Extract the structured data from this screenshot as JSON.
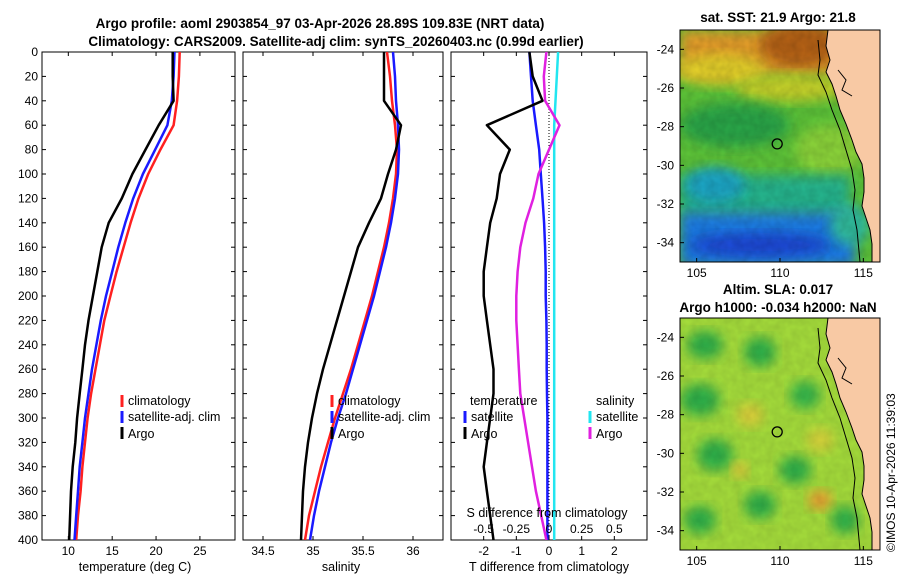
{
  "header": {
    "line1": "Argo profile: aoml 2903854_97 03-Apr-2026 28.89S 109.83E (NRT data)",
    "line2": "Climatology: CARS2009. Satellite-adj clim: synTS_20260403.nc (0.99d earlier)"
  },
  "credit": "©IMOS 10-Apr-2026 11:39:03",
  "colors": {
    "climatology": "#ff2020",
    "satellite": "#1a1aff",
    "argo": "#000000",
    "temp_diff": "#1a1aff",
    "sal_diff": "#22e6f0",
    "argo_sal_diff": "#e020e0",
    "land": "#f8c9a4"
  },
  "chart_data": [
    {
      "type": "line",
      "name": "temperature-profile",
      "xlabel": "temperature (deg C)",
      "ylabel": "",
      "xlim": [
        7,
        29
      ],
      "ylim": [
        400,
        0
      ],
      "xticks": [
        10,
        15,
        20,
        25
      ],
      "yticks": [
        0,
        20,
        40,
        60,
        80,
        100,
        120,
        140,
        160,
        180,
        200,
        220,
        240,
        260,
        280,
        300,
        320,
        340,
        360,
        380,
        400
      ],
      "legend": [
        "climatology",
        "satellite-adj. clim",
        "Argo"
      ],
      "series": [
        {
          "name": "climatology",
          "x": [
            22.7,
            22.6,
            22.4,
            22.0,
            20.5,
            19.1,
            18.0,
            17.1,
            16.3,
            15.5,
            14.8,
            14.1,
            13.6,
            13.1,
            12.6,
            12.2,
            11.9,
            11.6,
            11.4,
            11.1,
            10.9
          ],
          "y": [
            0,
            20,
            40,
            60,
            80,
            100,
            120,
            140,
            160,
            180,
            200,
            220,
            240,
            260,
            280,
            300,
            320,
            340,
            360,
            380,
            400
          ]
        },
        {
          "name": "satellite-adj. clim",
          "x": [
            22.1,
            22.0,
            21.8,
            21.3,
            19.9,
            18.5,
            17.4,
            16.5,
            15.7,
            15.0,
            14.3,
            13.7,
            13.2,
            12.7,
            12.3,
            11.9,
            11.6,
            11.3,
            11.1,
            10.9,
            10.7
          ],
          "y": [
            0,
            20,
            40,
            60,
            80,
            100,
            120,
            140,
            160,
            180,
            200,
            220,
            240,
            260,
            280,
            300,
            320,
            340,
            360,
            380,
            400
          ]
        },
        {
          "name": "Argo",
          "x": [
            21.9,
            21.9,
            22.0,
            20.3,
            18.8,
            17.3,
            16.1,
            14.6,
            13.8,
            13.3,
            12.8,
            12.3,
            11.9,
            11.6,
            11.3,
            11.0,
            10.8,
            10.5,
            10.3,
            10.2,
            10.1
          ],
          "y": [
            0,
            20,
            40,
            60,
            80,
            100,
            120,
            140,
            160,
            180,
            200,
            220,
            240,
            260,
            280,
            300,
            320,
            340,
            360,
            380,
            400
          ]
        }
      ]
    },
    {
      "type": "line",
      "name": "salinity-profile",
      "xlabel": "salinity",
      "ylabel": "",
      "xlim": [
        34.3,
        36.3
      ],
      "ylim": [
        400,
        0
      ],
      "xticks": [
        34.5,
        35,
        35.5,
        36
      ],
      "xticklabels": [
        "34.5",
        "35",
        "35.5",
        "36"
      ],
      "legend": [
        "climatology",
        "satellite-adj. clim",
        "Argo"
      ],
      "series": [
        {
          "name": "climatology",
          "x": [
            35.74,
            35.77,
            35.79,
            35.82,
            35.84,
            35.83,
            35.8,
            35.76,
            35.71,
            35.65,
            35.59,
            35.52,
            35.45,
            35.38,
            35.3,
            35.22,
            35.15,
            35.08,
            35.02,
            34.96,
            34.92
          ],
          "y": [
            0,
            20,
            40,
            60,
            80,
            100,
            120,
            140,
            160,
            180,
            200,
            220,
            240,
            260,
            280,
            300,
            320,
            340,
            360,
            380,
            400
          ]
        },
        {
          "name": "satellite-adj. clim",
          "x": [
            35.8,
            35.82,
            35.83,
            35.85,
            35.86,
            35.85,
            35.82,
            35.78,
            35.73,
            35.67,
            35.61,
            35.54,
            35.47,
            35.4,
            35.33,
            35.25,
            35.18,
            35.12,
            35.06,
            35.01,
            34.97
          ],
          "y": [
            0,
            20,
            40,
            60,
            80,
            100,
            120,
            140,
            160,
            180,
            200,
            220,
            240,
            260,
            280,
            300,
            320,
            340,
            360,
            380,
            400
          ]
        },
        {
          "name": "Argo",
          "x": [
            35.71,
            35.71,
            35.71,
            35.88,
            35.83,
            35.75,
            35.68,
            35.56,
            35.45,
            35.38,
            35.31,
            35.24,
            35.17,
            35.1,
            35.04,
            34.99,
            34.95,
            34.92,
            34.9,
            34.89,
            34.88
          ],
          "y": [
            0,
            20,
            40,
            60,
            80,
            100,
            120,
            140,
            160,
            180,
            200,
            220,
            240,
            260,
            280,
            300,
            320,
            340,
            360,
            380,
            400
          ]
        }
      ]
    },
    {
      "type": "line",
      "name": "difference-profile",
      "xlabel": "T difference from climatology",
      "top_xlabel": "S difference from climatology",
      "xlim": [
        -3,
        3
      ],
      "ylim": [
        400,
        0
      ],
      "xticks": [
        -2,
        -1,
        0,
        1,
        2
      ],
      "top_xticks": [
        "-0.5",
        "-0.25",
        "0",
        "0.25",
        "0.5"
      ],
      "legend_groups": [
        {
          "title": "temperature",
          "items": [
            "satellite",
            "Argo"
          ]
        },
        {
          "title": "salinity",
          "items": [
            "satellite",
            "Argo"
          ]
        }
      ],
      "series": [
        {
          "name": "temperature satellite",
          "x": [
            -0.6,
            -0.55,
            -0.5,
            -0.4,
            -0.3,
            -0.25,
            -0.2,
            -0.15,
            -0.12,
            -0.1,
            -0.1,
            -0.08,
            -0.07,
            -0.07,
            -0.06,
            -0.05,
            -0.05,
            -0.05,
            -0.05,
            -0.05,
            -0.05
          ],
          "y": [
            0,
            20,
            40,
            60,
            80,
            100,
            120,
            140,
            160,
            180,
            200,
            220,
            240,
            260,
            280,
            300,
            320,
            340,
            360,
            380,
            400
          ]
        },
        {
          "name": "temperature Argo",
          "x": [
            -0.6,
            -0.5,
            -0.2,
            -1.9,
            -1.2,
            -1.5,
            -1.6,
            -1.8,
            -1.9,
            -2.0,
            -2.0,
            -1.9,
            -1.8,
            -1.7,
            -1.7,
            -1.8,
            -1.9,
            -2.0,
            -1.9,
            -1.8,
            -1.7
          ],
          "y": [
            0,
            20,
            40,
            60,
            80,
            100,
            120,
            140,
            160,
            180,
            200,
            220,
            240,
            260,
            280,
            300,
            320,
            340,
            360,
            380,
            400
          ]
        },
        {
          "name": "salinity satellite",
          "x": [
            0.07,
            0.06,
            0.05,
            0.04,
            0.04,
            0.04,
            0.04,
            0.04,
            0.04,
            0.04,
            0.04,
            0.04,
            0.04,
            0.04,
            0.04,
            0.04,
            0.04,
            0.04,
            0.04,
            0.04,
            0.04
          ],
          "y": [
            0,
            20,
            40,
            60,
            80,
            100,
            120,
            140,
            160,
            180,
            200,
            220,
            240,
            260,
            280,
            300,
            320,
            340,
            360,
            380,
            400
          ]
        },
        {
          "name": "salinity Argo",
          "x": [
            -0.02,
            -0.04,
            -0.03,
            0.08,
            0.0,
            -0.08,
            -0.12,
            -0.18,
            -0.22,
            -0.24,
            -0.25,
            -0.25,
            -0.24,
            -0.23,
            -0.22,
            -0.19,
            -0.16,
            -0.13,
            -0.1,
            -0.06,
            -0.02
          ],
          "y": [
            0,
            20,
            40,
            60,
            80,
            100,
            120,
            140,
            160,
            180,
            200,
            220,
            240,
            260,
            280,
            300,
            320,
            340,
            360,
            380,
            400
          ]
        }
      ]
    },
    {
      "type": "heatmap",
      "name": "sst-map",
      "title": "sat. SST: 21.9 Argo: 21.8",
      "xlim": [
        104,
        116
      ],
      "ylim": [
        -35,
        -23
      ],
      "xticks": [
        105,
        110,
        115
      ],
      "yticks": [
        "-24",
        "-26",
        "-28",
        "-30",
        "-32",
        "-34"
      ],
      "argo_position": {
        "lon": 109.83,
        "lat": -28.89
      }
    },
    {
      "type": "heatmap",
      "name": "sla-map",
      "title_line1": "Altim. SLA: 0.017",
      "title_line2": "Argo h1000: -0.034 h2000: NaN",
      "xlim": [
        104,
        116
      ],
      "ylim": [
        -35,
        -23
      ],
      "xticks": [
        105,
        110,
        115
      ],
      "yticks": [
        "-24",
        "-26",
        "-28",
        "-30",
        "-32",
        "-34"
      ],
      "argo_position": {
        "lon": 109.83,
        "lat": -28.89
      }
    }
  ]
}
